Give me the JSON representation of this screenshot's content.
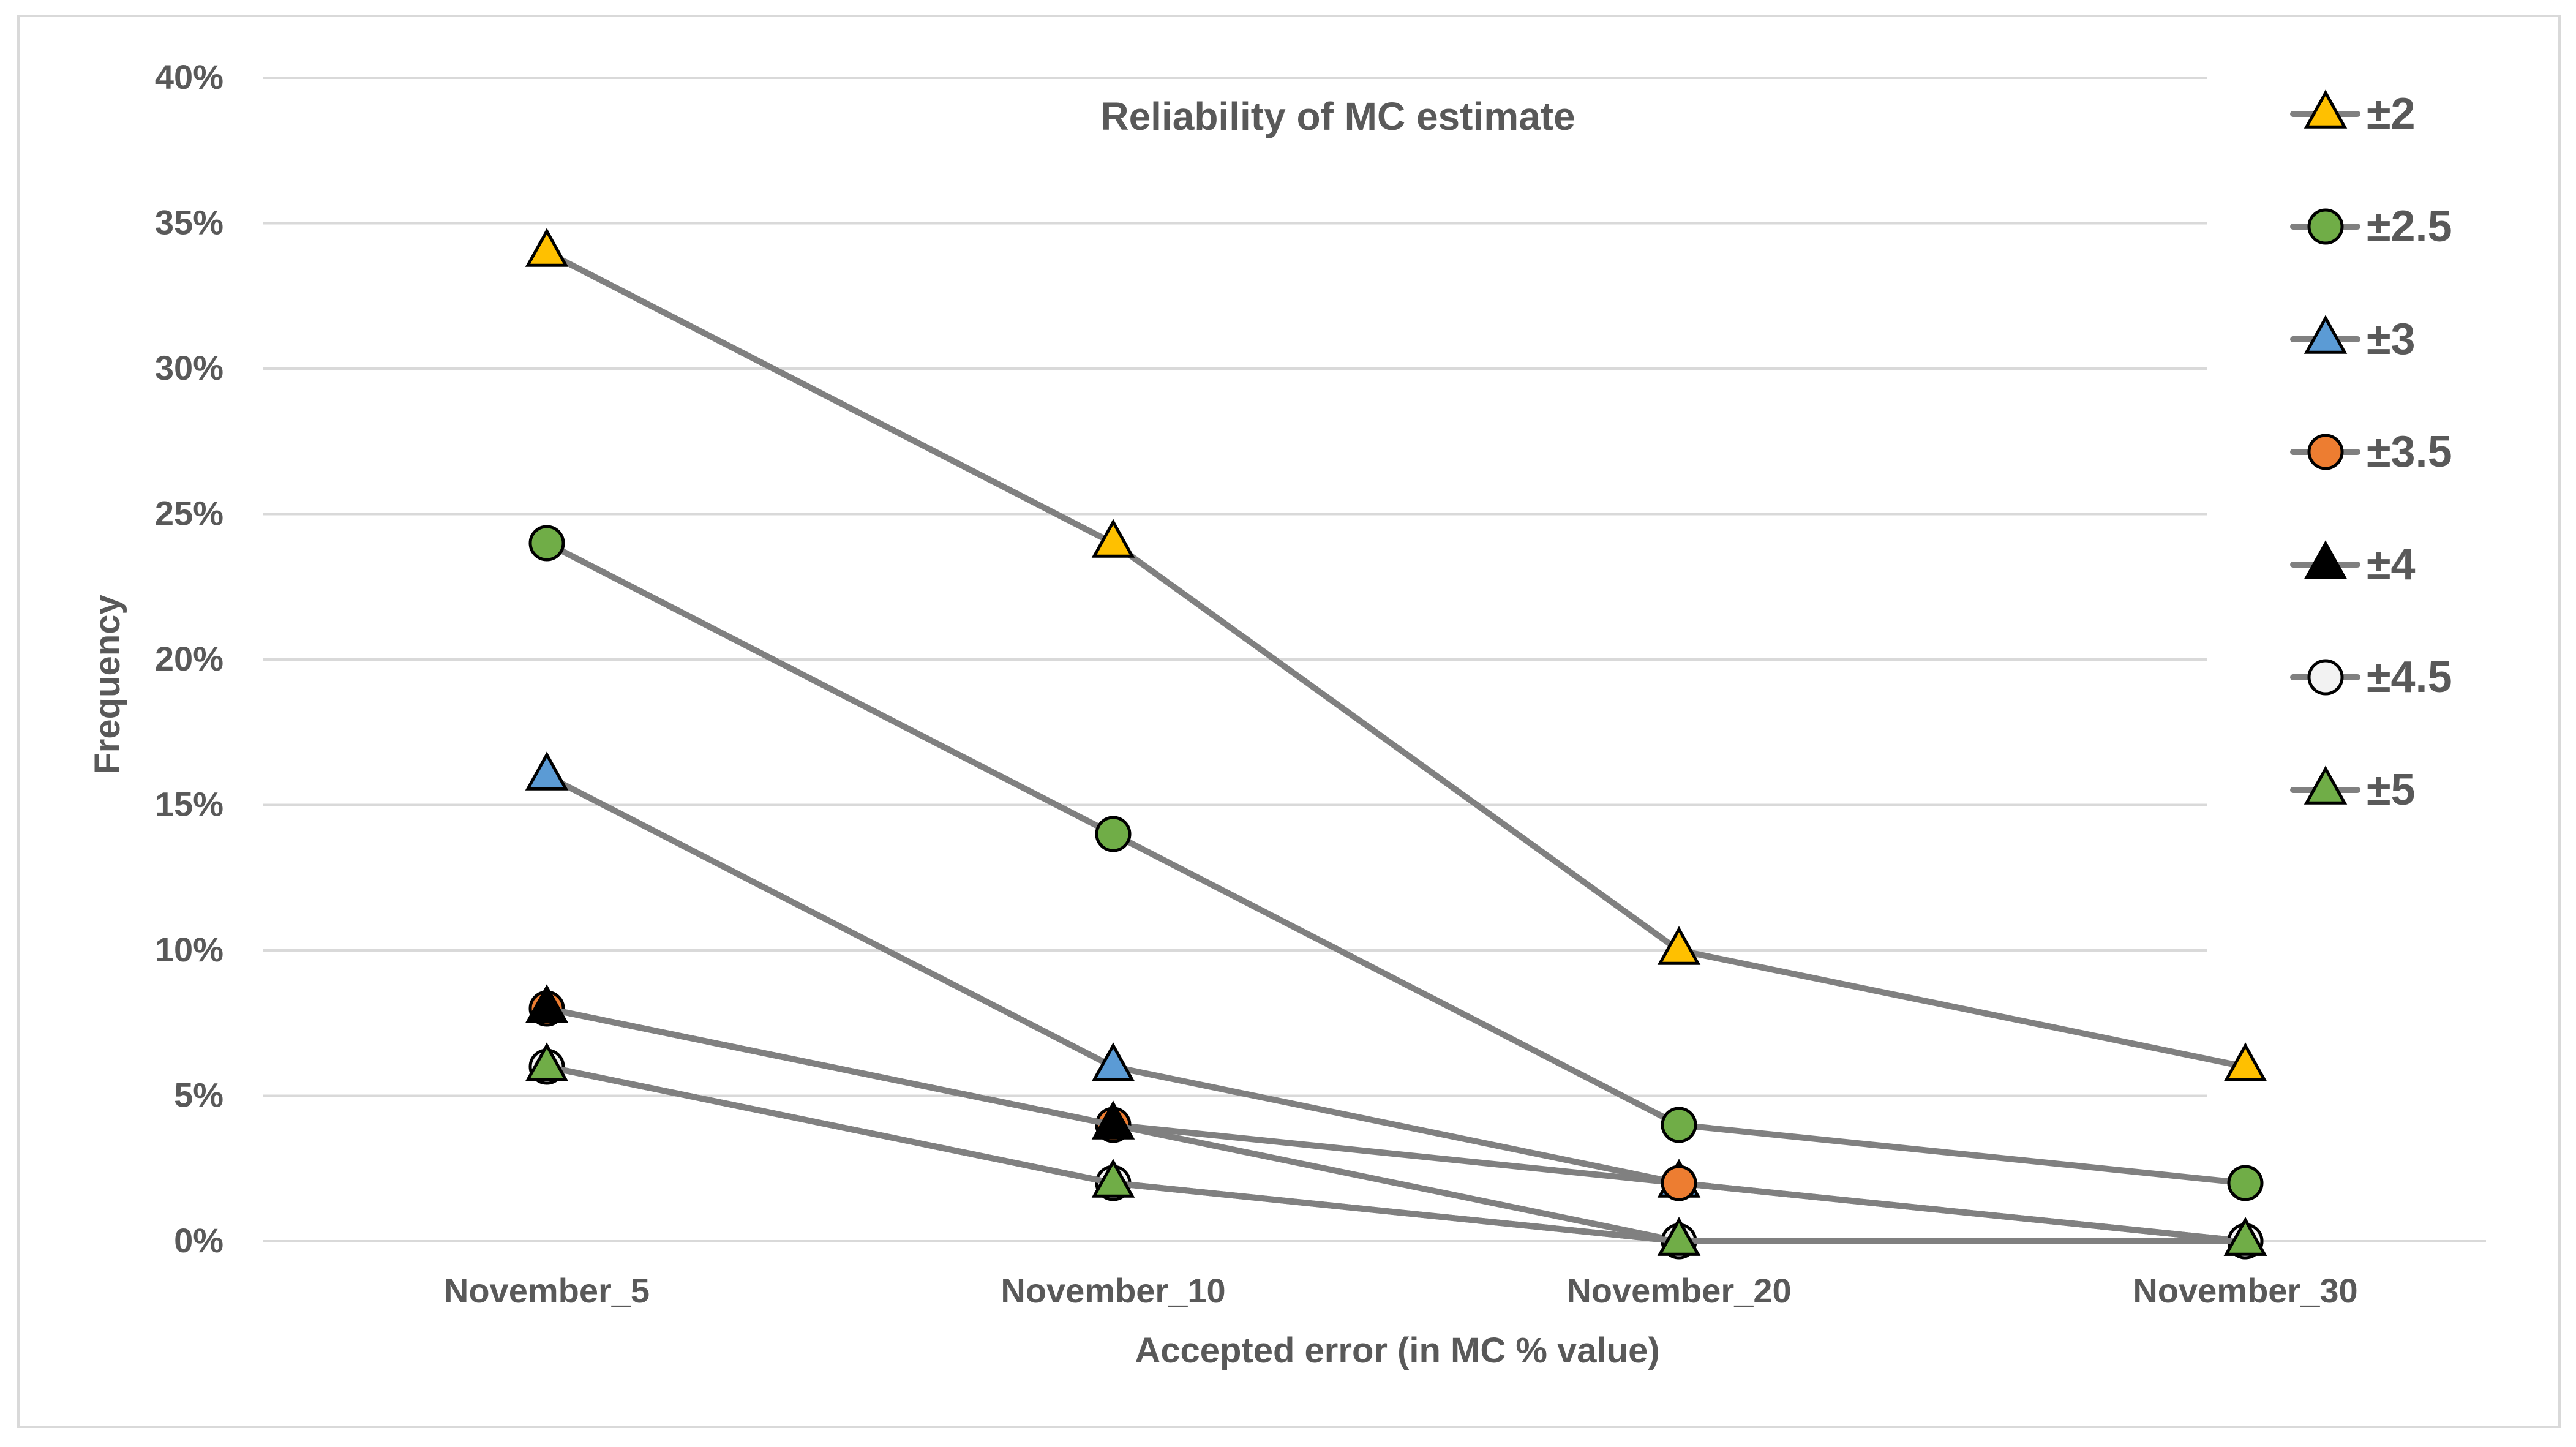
{
  "chart_data": {
    "type": "line",
    "title": "Reliability of MC estimate",
    "xlabel": "Accepted error (in MC % value)",
    "ylabel": "Frequency",
    "categories": [
      "November_5",
      "November_10",
      "November_20",
      "November_30"
    ],
    "ylim": [
      0,
      40
    ],
    "y_ticks": [
      0,
      5,
      10,
      15,
      20,
      25,
      30,
      35,
      40
    ],
    "y_tick_labels": [
      "0%",
      "5%",
      "10%",
      "15%",
      "20%",
      "25%",
      "30%",
      "35%",
      "40%"
    ],
    "grid": true,
    "legend_position": "right",
    "line_color": "#808080",
    "series": [
      {
        "name": "±2",
        "values": [
          34,
          24,
          10,
          6
        ],
        "marker": "triangle",
        "marker_color": "#FFC000"
      },
      {
        "name": "±2.5",
        "values": [
          24,
          14,
          4,
          2
        ],
        "marker": "circle",
        "marker_color": "#70AD47"
      },
      {
        "name": "±3",
        "values": [
          16,
          6,
          2,
          0
        ],
        "marker": "triangle",
        "marker_color": "#5B9BD5"
      },
      {
        "name": "±3.5",
        "values": [
          8,
          4,
          2,
          0
        ],
        "marker": "circle",
        "marker_color": "#ED7D31"
      },
      {
        "name": "±4",
        "values": [
          8,
          4,
          0,
          0
        ],
        "marker": "triangle",
        "marker_color": "#000000"
      },
      {
        "name": "±4.5",
        "values": [
          6,
          2,
          0,
          0
        ],
        "marker": "circle",
        "marker_color": "#F2F2F2"
      },
      {
        "name": "±5",
        "values": [
          6,
          2,
          0,
          0
        ],
        "marker": "triangle",
        "marker_color": "#70AD47"
      }
    ]
  }
}
